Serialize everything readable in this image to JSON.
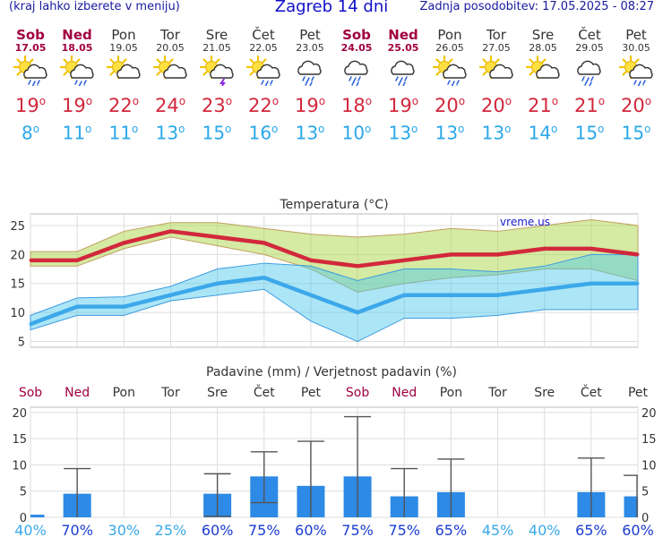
{
  "header": {
    "menu_hint": "(kraj lahko izberete v meniju)",
    "title": "Zagreb 14 dni",
    "updated": "Zadnja posodobitev: 17.05.2025 - 08:27"
  },
  "days": [
    {
      "name": "Sob",
      "date": "17.05",
      "icon": "sun-cloud-rain-icon",
      "max": "19",
      "min": "8",
      "weekend": true
    },
    {
      "name": "Ned",
      "date": "18.05",
      "icon": "sun-cloud-rain-icon",
      "max": "19",
      "min": "11",
      "weekend": true
    },
    {
      "name": "Pon",
      "date": "19.05",
      "icon": "sun-cloud-icon",
      "max": "22",
      "min": "11",
      "weekend": false
    },
    {
      "name": "Tor",
      "date": "20.05",
      "icon": "sun-cloud-icon",
      "max": "24",
      "min": "13",
      "weekend": false
    },
    {
      "name": "Sre",
      "date": "21.05",
      "icon": "sun-cloud-thunder-icon",
      "max": "23",
      "min": "15",
      "weekend": false
    },
    {
      "name": "Čet",
      "date": "22.05",
      "icon": "sun-cloud-rain-icon",
      "max": "22",
      "min": "16",
      "weekend": false
    },
    {
      "name": "Pet",
      "date": "23.05",
      "icon": "cloud-rain-icon",
      "max": "19",
      "min": "13",
      "weekend": false
    },
    {
      "name": "Sob",
      "date": "24.05",
      "icon": "cloud-rain-icon",
      "max": "18",
      "min": "10",
      "weekend": true
    },
    {
      "name": "Ned",
      "date": "25.05",
      "icon": "cloud-rain-icon",
      "max": "19",
      "min": "13",
      "weekend": true
    },
    {
      "name": "Pon",
      "date": "26.05",
      "icon": "sun-cloud-rain-icon",
      "max": "20",
      "min": "13",
      "weekend": false
    },
    {
      "name": "Tor",
      "date": "27.05",
      "icon": "sun-cloud-icon",
      "max": "20",
      "min": "13",
      "weekend": false
    },
    {
      "name": "Sre",
      "date": "28.05",
      "icon": "sun-cloud-icon",
      "max": "21",
      "min": "14",
      "weekend": false
    },
    {
      "name": "Čet",
      "date": "29.05",
      "icon": "cloud-rain-icon",
      "max": "21",
      "min": "15",
      "weekend": false
    },
    {
      "name": "Pet",
      "date": "30.05",
      "icon": "sun-cloud-rain-icon",
      "max": "20",
      "min": "15",
      "weekend": false
    }
  ],
  "degree_sign": "o",
  "chart_data": [
    {
      "type": "line",
      "title": "Temperatura (°C)",
      "watermark": "vreme.us",
      "ylim": [
        4,
        27
      ],
      "yticks": [
        5,
        10,
        15,
        20,
        25
      ],
      "grid": true,
      "series": [
        {
          "values": [
            19,
            19,
            22,
            24,
            23,
            22,
            19,
            18,
            19,
            20,
            20,
            21,
            21,
            20
          ],
          "color": "#d2283c"
        },
        {
          "values": [
            8,
            11,
            11,
            13,
            15,
            16,
            13,
            10,
            13,
            13,
            13,
            14,
            15,
            15
          ],
          "color": "#3ca8ea"
        }
      ],
      "max_band_low": [
        18,
        18,
        21,
        23,
        21.5,
        20,
        17.5,
        13.5,
        15,
        16,
        16.5,
        17.5,
        17.5,
        15.5
      ],
      "max_band_high": [
        20.5,
        20.5,
        24,
        25.5,
        25.5,
        24.5,
        23.5,
        23,
        23.5,
        24.5,
        24,
        25,
        26,
        25
      ],
      "min_band_low": [
        7,
        9.5,
        9.5,
        12,
        13,
        14,
        8.5,
        5,
        9,
        9,
        9.5,
        10.5,
        10.5,
        10.5
      ],
      "min_band_high": [
        9.5,
        12.5,
        12.7,
        14.5,
        17.5,
        18.5,
        18,
        15.5,
        17.5,
        17.5,
        17,
        18,
        20,
        20
      ]
    },
    {
      "type": "bar",
      "title": "Padavine (mm) / Verjetnost padavin (%)",
      "categories": [
        "Sob",
        "Ned",
        "Pon",
        "Tor",
        "Sre",
        "Čet",
        "Pet",
        "Sob",
        "Ned",
        "Pon",
        "Tor",
        "Sre",
        "Čet",
        "Pet"
      ],
      "weekend": [
        true,
        true,
        false,
        false,
        false,
        false,
        false,
        true,
        true,
        false,
        false,
        false,
        false,
        false
      ],
      "values": [
        0.5,
        4.5,
        0,
        0,
        4.5,
        7.8,
        6,
        7.8,
        4,
        4.8,
        0,
        0,
        4.8,
        4
      ],
      "error_low": [
        0,
        0,
        0,
        0,
        0.2,
        2.8,
        0,
        0,
        0,
        0,
        0,
        0,
        0,
        0
      ],
      "error_high": [
        0,
        9.3,
        0,
        0,
        8.3,
        12.5,
        14.5,
        19.2,
        9.3,
        11.1,
        0,
        0,
        11.3,
        8
      ],
      "probability": [
        "40%",
        "70%",
        "30%",
        "25%",
        "60%",
        "75%",
        "60%",
        "75%",
        "75%",
        "65%",
        "45%",
        "40%",
        "65%",
        "60%"
      ],
      "prob_high": [
        false,
        true,
        false,
        false,
        true,
        true,
        true,
        true,
        true,
        true,
        false,
        false,
        true,
        true
      ],
      "ylim": [
        0,
        21
      ],
      "yticks": [
        0,
        5,
        10,
        15,
        20
      ],
      "bar_color": "#2d8ae6"
    }
  ]
}
